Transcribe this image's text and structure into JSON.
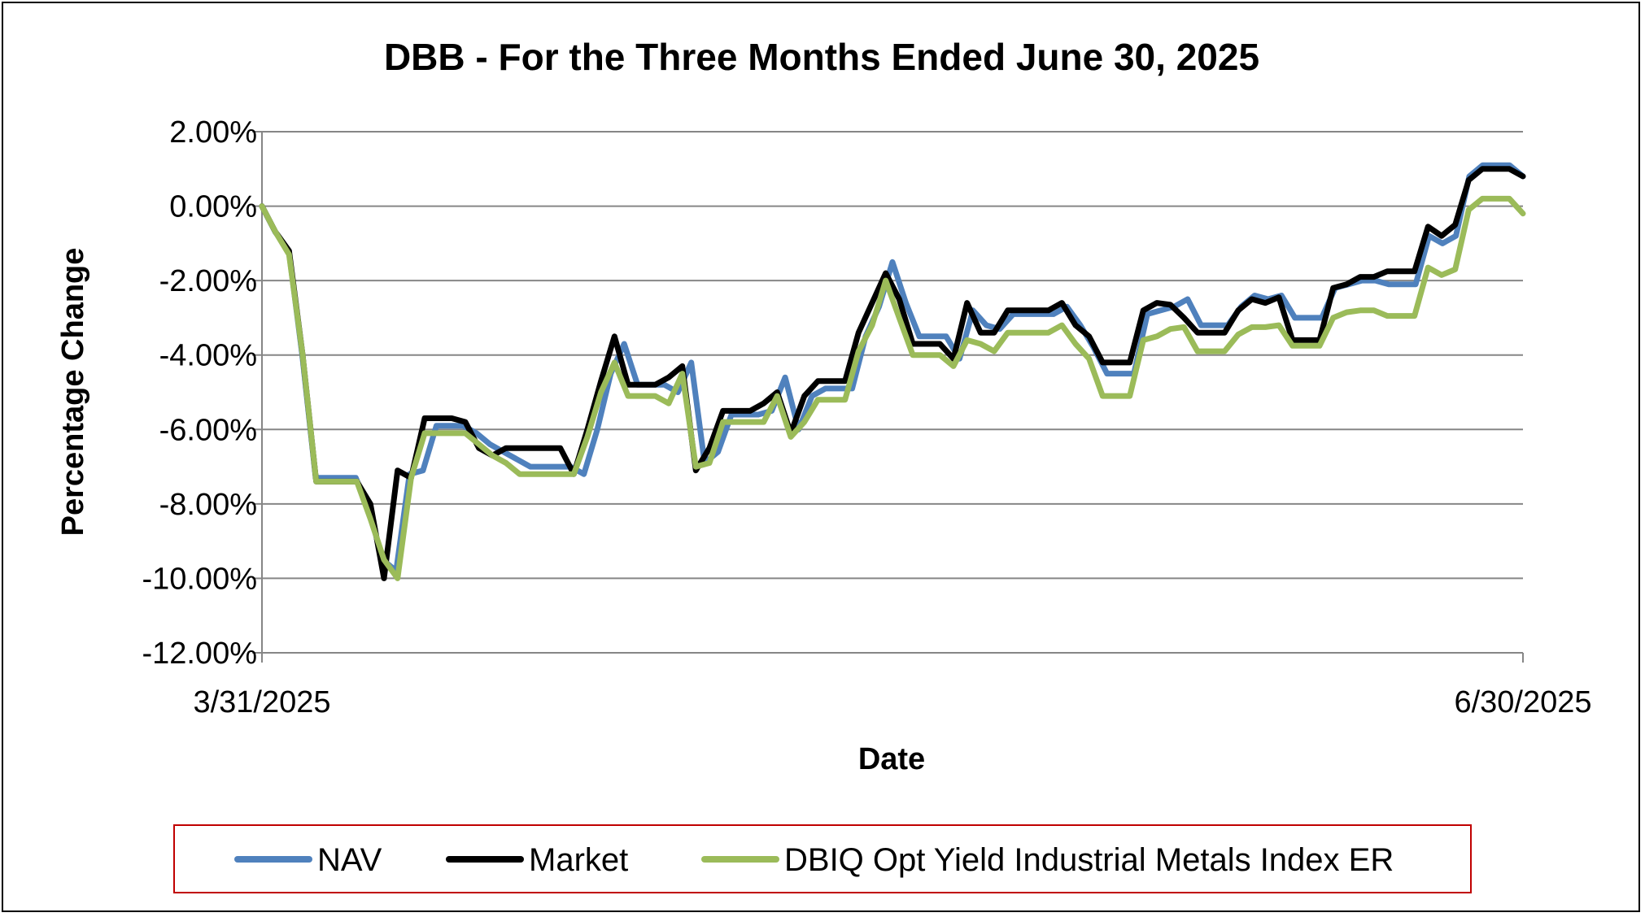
{
  "chart_data": {
    "type": "line",
    "title": "DBB - For the Three Months Ended June 30, 2025",
    "xlabel": "Date",
    "ylabel": "Percentage Change",
    "x_tick_labels": [
      "3/31/2025",
      "6/30/2025"
    ],
    "x_range": [
      "3/31/2025",
      "6/30/2025"
    ],
    "y_ticks": [
      2,
      0,
      -2,
      -4,
      -6,
      -8,
      -10,
      -12
    ],
    "y_tick_labels": [
      "2.00%",
      "0.00%",
      "-2.00%",
      "-4.00%",
      "-6.00%",
      "-8.00%",
      "-10.00%",
      "-12.00%"
    ],
    "ylim": [
      -12,
      2
    ],
    "grid": "horizontal",
    "legend_position": "bottom",
    "series": [
      {
        "name": "NAV",
        "color": "#4F81BD",
        "values": [
          0,
          -0.7,
          -1.2,
          -4,
          -7.3,
          -7.3,
          -7.3,
          -7.3,
          -8.2,
          -9.5,
          -9.8,
          -7.2,
          -7.1,
          -5.9,
          -5.9,
          -5.9,
          -6.1,
          -6.4,
          -6.6,
          -6.8,
          -7,
          -7,
          -7,
          -7,
          -7.2,
          -6,
          -4.5,
          -3.7,
          -4.8,
          -4.8,
          -4.8,
          -5,
          -4.2,
          -6.9,
          -6.6,
          -5.6,
          -5.6,
          -5.6,
          -5.5,
          -4.6,
          -6,
          -5.1,
          -4.9,
          -4.9,
          -4.9,
          -3.5,
          -2.7,
          -1.5,
          -2.6,
          -3.5,
          -3.5,
          -3.5,
          -4.1,
          -2.8,
          -3.2,
          -3.3,
          -2.9,
          -2.9,
          -2.9,
          -2.9,
          -2.7,
          -3.2,
          -3.8,
          -4.5,
          -4.5,
          -4.5,
          -2.9,
          -2.8,
          -2.7,
          -2.5,
          -3.2,
          -3.2,
          -3.2,
          -2.7,
          -2.4,
          -2.5,
          -2.4,
          -3,
          -3,
          -3,
          -2.2,
          -2.1,
          -2,
          -2,
          -2.1,
          -2.1,
          -2.1,
          -0.8,
          -1,
          -0.8,
          0.8,
          1.1,
          1.1,
          1.1,
          0.8
        ]
      },
      {
        "name": "Market",
        "color": "#000000",
        "values": [
          0,
          -0.7,
          -1.2,
          -4,
          -7.4,
          -7.4,
          -7.4,
          -7.4,
          -8,
          -10,
          -7.1,
          -7.3,
          -5.7,
          -5.7,
          -5.7,
          -5.8,
          -6.5,
          -6.7,
          -6.5,
          -6.5,
          -6.5,
          -6.5,
          -6.5,
          -7.2,
          -6,
          -4.7,
          -3.5,
          -4.8,
          -4.8,
          -4.8,
          -4.6,
          -4.3,
          -7.1,
          -6.5,
          -5.5,
          -5.5,
          -5.5,
          -5.3,
          -5,
          -6.1,
          -5.1,
          -4.7,
          -4.7,
          -4.7,
          -3.4,
          -2.6,
          -1.8,
          -2.5,
          -3.7,
          -3.7,
          -3.7,
          -4.1,
          -2.6,
          -3.4,
          -3.4,
          -2.8,
          -2.8,
          -2.8,
          -2.8,
          -2.6,
          -3.2,
          -3.5,
          -4.2,
          -4.2,
          -4.2,
          -2.8,
          -2.6,
          -2.65,
          -3,
          -3.4,
          -3.4,
          -3.4,
          -2.8,
          -2.5,
          -2.6,
          -2.45,
          -3.6,
          -3.6,
          -3.6,
          -2.2,
          -2.1,
          -1.9,
          -1.9,
          -1.75,
          -1.75,
          -1.75,
          -0.55,
          -0.8,
          -0.5,
          0.7,
          1,
          1,
          1,
          0.8
        ]
      },
      {
        "name": "DBIQ Opt Yield Industrial Metals Index ER",
        "color": "#9BBB59",
        "values": [
          0,
          -0.7,
          -1.3,
          -4,
          -7.4,
          -7.4,
          -7.4,
          -7.4,
          -8.4,
          -9.5,
          -10,
          -7.3,
          -6.1,
          -6.1,
          -6.1,
          -6.1,
          -6.4,
          -6.7,
          -6.9,
          -7.2,
          -7.2,
          -7.2,
          -7.2,
          -7.2,
          -6.2,
          -5,
          -4.2,
          -5.1,
          -5.1,
          -5.1,
          -5.3,
          -4.5,
          -7,
          -6.9,
          -5.8,
          -5.8,
          -5.8,
          -5.8,
          -5.1,
          -6.2,
          -5.8,
          -5.2,
          -5.2,
          -5.2,
          -3.9,
          -3.2,
          -2,
          -3,
          -4,
          -4,
          -4,
          -4.3,
          -3.6,
          -3.7,
          -3.9,
          -3.4,
          -3.4,
          -3.4,
          -3.4,
          -3.2,
          -3.7,
          -4.1,
          -5.1,
          -5.1,
          -5.1,
          -3.6,
          -3.5,
          -3.3,
          -3.25,
          -3.9,
          -3.9,
          -3.9,
          -3.45,
          -3.25,
          -3.25,
          -3.2,
          -3.75,
          -3.75,
          -3.75,
          -3,
          -2.85,
          -2.8,
          -2.8,
          -2.95,
          -2.95,
          -2.95,
          -1.65,
          -1.85,
          -1.7,
          -0.1,
          0.2,
          0.2,
          0.2,
          -0.2
        ]
      }
    ]
  }
}
